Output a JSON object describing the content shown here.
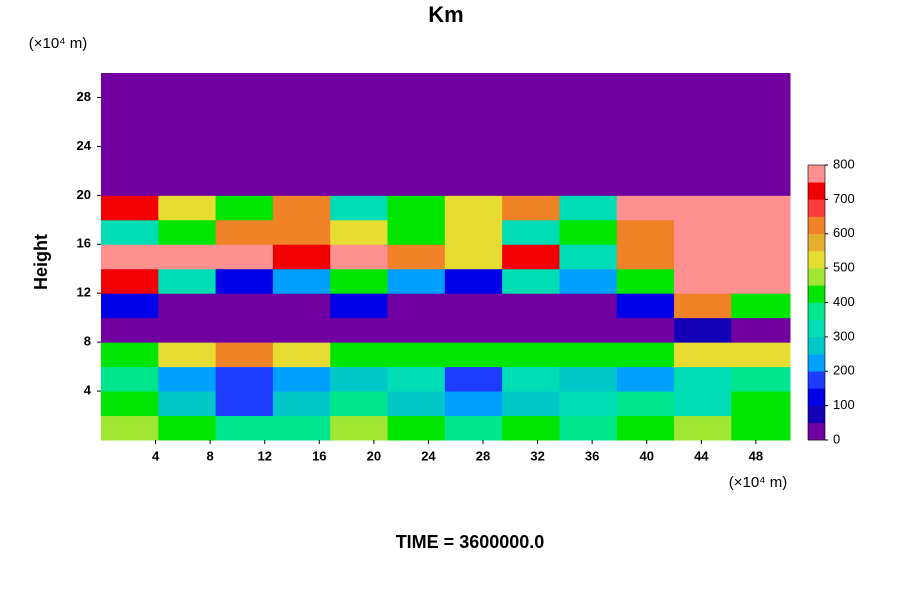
{
  "chart_data": {
    "type": "heatmap",
    "title": "Km",
    "y_unit": "(×10⁴ m)",
    "x_unit": "(×10⁴ m)",
    "ylabel": "Height",
    "footer": "TIME = 3600000.0",
    "xlim": [
      0,
      50.5
    ],
    "ylim": [
      0,
      30
    ],
    "xticks": [
      4,
      8,
      12,
      16,
      20,
      24,
      28,
      32,
      36,
      40,
      44,
      48
    ],
    "yticks": [
      4,
      8,
      12,
      16,
      20,
      24,
      28
    ],
    "xbins": [
      0,
      4.2,
      8.4,
      12.6,
      16.8,
      21,
      25.2,
      29.4,
      33.6,
      37.8,
      42,
      46.2,
      50.5
    ],
    "ybins": [
      0,
      2,
      4,
      6,
      8,
      10,
      12,
      14,
      16,
      18,
      20,
      22,
      24,
      26,
      28,
      30
    ],
    "z": [
      [
        450,
        400,
        350,
        350,
        450,
        400,
        350,
        400,
        350,
        400,
        450,
        400
      ],
      [
        400,
        250,
        150,
        250,
        350,
        250,
        200,
        250,
        300,
        350,
        300,
        400
      ],
      [
        350,
        200,
        150,
        200,
        250,
        300,
        150,
        300,
        250,
        200,
        300,
        350
      ],
      [
        400,
        500,
        600,
        500,
        400,
        400,
        400,
        400,
        400,
        400,
        500,
        500
      ],
      [
        0,
        0,
        0,
        0,
        0,
        0,
        0,
        0,
        0,
        0,
        50,
        0
      ],
      [
        100,
        0,
        0,
        0,
        100,
        0,
        0,
        0,
        0,
        100,
        600,
        400
      ],
      [
        700,
        300,
        100,
        200,
        400,
        200,
        100,
        300,
        200,
        400,
        800,
        800
      ],
      [
        800,
        800,
        800,
        700,
        800,
        600,
        500,
        700,
        300,
        600,
        800,
        800
      ],
      [
        300,
        400,
        600,
        600,
        500,
        400,
        500,
        300,
        400,
        600,
        800,
        800
      ],
      [
        700,
        500,
        400,
        600,
        300,
        400,
        500,
        600,
        300,
        800,
        800,
        800
      ],
      [
        0,
        0,
        0,
        0,
        0,
        0,
        0,
        0,
        0,
        0,
        0,
        0
      ],
      [
        0,
        0,
        0,
        0,
        0,
        0,
        0,
        0,
        0,
        0,
        0,
        0
      ],
      [
        0,
        0,
        0,
        0,
        0,
        0,
        0,
        0,
        0,
        0,
        0,
        0
      ],
      [
        0,
        0,
        0,
        0,
        0,
        0,
        0,
        0,
        0,
        0,
        0,
        0
      ],
      [
        0,
        0,
        0,
        0,
        0,
        0,
        0,
        0,
        0,
        0,
        0,
        0
      ]
    ],
    "clim": [
      0,
      800
    ],
    "cticks": [
      0,
      100,
      200,
      300,
      400,
      500,
      600,
      700,
      800
    ],
    "colors": [
      "#7000a0",
      "#1400b4",
      "#0000e6",
      "#1e3cff",
      "#00a0ff",
      "#00c8c8",
      "#00dcb4",
      "#00e68c",
      "#00e600",
      "#a0e632",
      "#e6dc32",
      "#e6af2d",
      "#f08228",
      "#fa3c3c",
      "#f00000",
      "#ff9090"
    ]
  }
}
